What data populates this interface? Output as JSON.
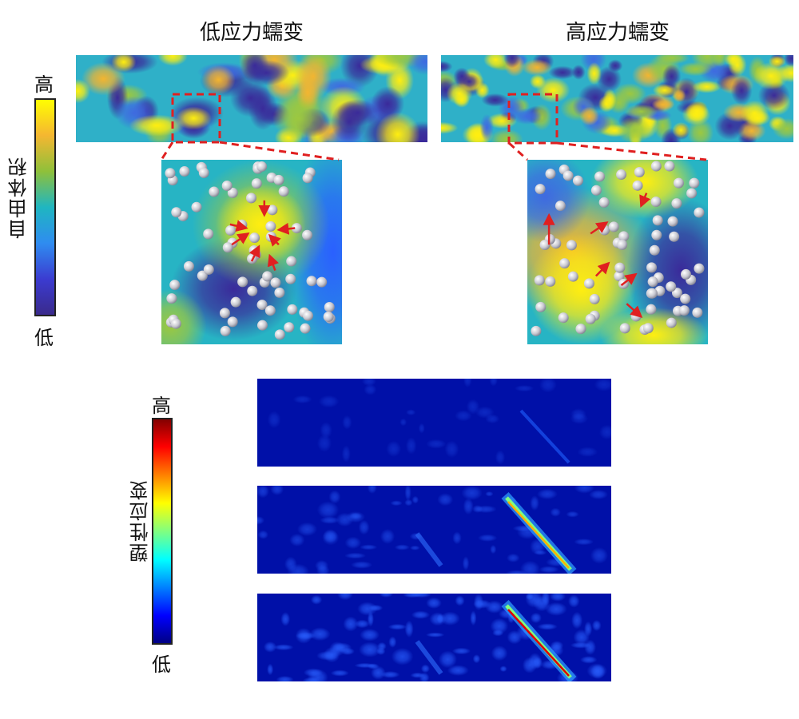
{
  "panels": {
    "low_stress": {
      "title": "低应力蠕变"
    },
    "high_stress": {
      "title": "高应力蠕变"
    }
  },
  "free_volume_colorbar": {
    "label": "自由体积",
    "high": "高",
    "low": "低",
    "colors": [
      "#ffff00",
      "#f5b731",
      "#8fc03a",
      "#1fb6c1",
      "#2f8cf0",
      "#3b3bd0",
      "#3a2a8a"
    ]
  },
  "plastic_strain_colorbar": {
    "label": "塑性应变",
    "high": "高",
    "low": "低",
    "colors": [
      "#800000",
      "#ff0000",
      "#ff8000",
      "#ffff00",
      "#80ff80",
      "#00ffff",
      "#0080ff",
      "#0000ff",
      "#000080"
    ]
  },
  "highlight_color": "#e02020"
}
